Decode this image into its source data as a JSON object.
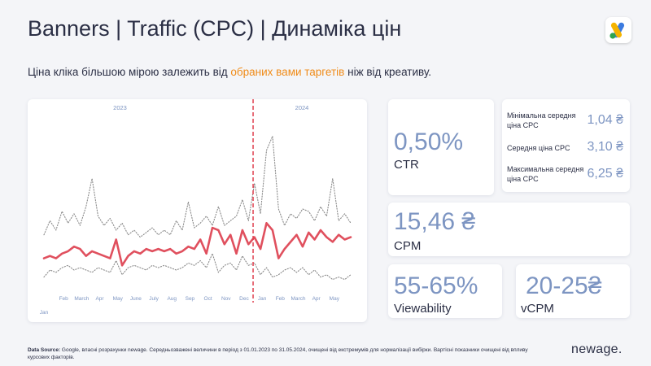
{
  "header": {
    "title": "Banners | Traffic (CPC) | Динаміка цін",
    "subtitle_pre": "Ціна кліка більшою мірою залежить від ",
    "subtitle_highlight": "обраних вами таргетів",
    "subtitle_post": " ніж від креативу."
  },
  "chart_data": {
    "type": "line",
    "year_labels": [
      "2023",
      "2024"
    ],
    "month_labels": [
      "Jan",
      "Feb",
      "March",
      "Apr",
      "May",
      "June",
      "July",
      "Aug",
      "Sep",
      "Oct",
      "Nov",
      "Dec",
      "Jan",
      "Feb",
      "March",
      "Apr",
      "May"
    ],
    "divider_between": [
      "Dec",
      "Jan"
    ],
    "ylim": [
      0,
      7
    ],
    "series": [
      {
        "style": "dotted-gray",
        "values": [
          2.4,
          3.0,
          2.6,
          3.4,
          2.9,
          3.3,
          2.8,
          3.6,
          4.8,
          3.2,
          2.8,
          3.1,
          2.6,
          2.9,
          2.4,
          2.6,
          2.3,
          2.5,
          2.7,
          2.4,
          2.6,
          2.4,
          3.0,
          2.6,
          3.8,
          2.7,
          2.9,
          3.2,
          2.8,
          3.6,
          2.8,
          3.0,
          3.2,
          3.9,
          3.0,
          4.6,
          3.3,
          6.0,
          6.6,
          3.5,
          2.8,
          3.3,
          3.1,
          3.5,
          3.4,
          3.0,
          3.6,
          3.2,
          4.8,
          3.0,
          3.3,
          2.9
        ]
      },
      {
        "style": "solid-red",
        "values": [
          1.4,
          1.5,
          1.4,
          1.6,
          1.7,
          1.9,
          1.8,
          1.5,
          1.7,
          1.6,
          1.5,
          1.4,
          2.2,
          1.1,
          1.5,
          1.7,
          1.6,
          1.8,
          1.7,
          1.8,
          1.7,
          1.8,
          1.6,
          1.7,
          1.9,
          1.8,
          2.2,
          1.6,
          2.7,
          2.6,
          2.0,
          2.4,
          1.6,
          2.6,
          2.0,
          2.3,
          1.8,
          2.9,
          2.6,
          1.4,
          1.8,
          2.1,
          2.4,
          1.9,
          2.5,
          2.2,
          2.6,
          2.3,
          2.1,
          2.4,
          2.2,
          2.3
        ]
      },
      {
        "style": "dotted-gray",
        "values": [
          0.6,
          0.9,
          0.8,
          1.0,
          1.1,
          0.9,
          1.0,
          0.9,
          0.8,
          1.0,
          0.9,
          0.8,
          1.3,
          0.7,
          1.0,
          1.1,
          1.0,
          0.9,
          1.1,
          1.0,
          1.1,
          1.0,
          0.9,
          1.0,
          1.2,
          1.1,
          1.3,
          1.0,
          1.6,
          0.8,
          1.1,
          1.2,
          0.9,
          1.5,
          1.1,
          1.2,
          0.7,
          1.0,
          0.6,
          0.7,
          0.9,
          1.0,
          0.8,
          1.0,
          0.7,
          0.9,
          0.6,
          0.7,
          0.5,
          0.6,
          0.5,
          0.7
        ]
      }
    ]
  },
  "metrics": {
    "ctr": {
      "value": "0,50%",
      "label": "CTR"
    },
    "cpm": {
      "value": "15,46 ₴",
      "label": "CPM"
    },
    "viewability": {
      "value": "55-65%",
      "label": "Viewability"
    },
    "vcpm": {
      "value": "20-25₴",
      "label": "vCPM"
    },
    "cpc_stats": [
      {
        "label": "Мінімальна середня ціна CPC",
        "value": "1,04 ₴"
      },
      {
        "label": "Середня ціна CPC",
        "value": "3,10 ₴"
      },
      {
        "label": "Максимальна середня ціна CPC",
        "value": "6,25 ₴"
      }
    ]
  },
  "footer": {
    "source_label": "Data Source:",
    "source_text": " Google, власні розрахунки newage.  Середньозважені  величини в період з 01.01.2023 по 31.05.2024, очищені від екстремумів для нормалізації вибірки. Вартісні показники очищені від впливу курсових факторів.",
    "brand": "newage."
  },
  "colors": {
    "accent": "#7d95c2",
    "highlight": "#f08c1a",
    "red_series": "#e0505e",
    "divider": "#e04050"
  },
  "icons": {
    "logo": "google-ads-logo-icon"
  }
}
